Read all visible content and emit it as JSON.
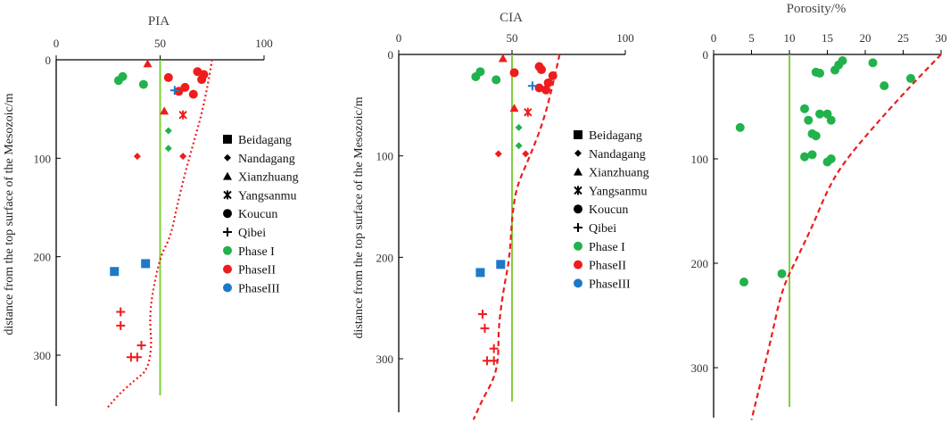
{
  "legend": [
    {
      "label": "Beidagang",
      "marker": "square",
      "color": "#000000"
    },
    {
      "label": "Nandagang",
      "marker": "diamond",
      "color": "#000000"
    },
    {
      "label": "Xianzhuang",
      "marker": "triangle",
      "color": "#000000"
    },
    {
      "label": "Yangsanmu",
      "marker": "star",
      "color": "#000000"
    },
    {
      "label": "Koucun",
      "marker": "circle",
      "color": "#000000"
    },
    {
      "label": "Qibei",
      "marker": "plus",
      "color": "#000000"
    },
    {
      "label": "Phase I",
      "marker": "circle",
      "color": "#22b24c"
    },
    {
      "label": "PhaseII",
      "marker": "circle",
      "color": "#ee1c1c"
    },
    {
      "label": "PhaseIII",
      "marker": "circle",
      "color": "#1f78c8"
    }
  ],
  "colors": {
    "phase1": "#22b24c",
    "phase2": "#ee1c1c",
    "phase3": "#1f78c8",
    "refline": "#7fd13b",
    "trend": "#ee1c1c",
    "axis": "#000000"
  },
  "chart_data": [
    {
      "type": "scatter",
      "title": "PIA",
      "ylabel": "distance from the top surface of the Mesozoic/m",
      "xlim": [
        0,
        100
      ],
      "ylim": [
        0,
        350
      ],
      "xticks": [
        0,
        50,
        100
      ],
      "yticks": [
        0,
        100,
        200,
        300
      ],
      "refline_x": 50,
      "points": [
        {
          "x": 30,
          "y": 21,
          "marker": "circle",
          "phase": "phase1"
        },
        {
          "x": 32,
          "y": 17,
          "marker": "circle",
          "phase": "phase1"
        },
        {
          "x": 42,
          "y": 25,
          "marker": "circle",
          "phase": "phase1"
        },
        {
          "x": 54,
          "y": 72,
          "marker": "diamond",
          "phase": "phase1"
        },
        {
          "x": 54,
          "y": 90,
          "marker": "diamond",
          "phase": "phase1"
        },
        {
          "x": 44,
          "y": 4,
          "marker": "triangle",
          "phase": "phase2"
        },
        {
          "x": 52,
          "y": 52,
          "marker": "triangle",
          "phase": "phase2"
        },
        {
          "x": 54,
          "y": 18,
          "marker": "circle",
          "phase": "phase2"
        },
        {
          "x": 59,
          "y": 32,
          "marker": "circle",
          "phase": "phase2"
        },
        {
          "x": 62,
          "y": 28,
          "marker": "circle",
          "phase": "phase2"
        },
        {
          "x": 66,
          "y": 35,
          "marker": "circle",
          "phase": "phase2"
        },
        {
          "x": 68,
          "y": 12,
          "marker": "circle",
          "phase": "phase2"
        },
        {
          "x": 70,
          "y": 20,
          "marker": "circle",
          "phase": "phase2"
        },
        {
          "x": 71,
          "y": 15,
          "marker": "circle",
          "phase": "phase2"
        },
        {
          "x": 61,
          "y": 56,
          "marker": "star",
          "phase": "phase2"
        },
        {
          "x": 39,
          "y": 98,
          "marker": "diamond",
          "phase": "phase2"
        },
        {
          "x": 61,
          "y": 98,
          "marker": "diamond",
          "phase": "phase2"
        },
        {
          "x": 57,
          "y": 31,
          "marker": "plus",
          "phase": "phase3"
        },
        {
          "x": 43,
          "y": 207,
          "marker": "square",
          "phase": "phase3"
        },
        {
          "x": 28,
          "y": 215,
          "marker": "square",
          "phase": "phase3"
        },
        {
          "x": 31,
          "y": 256,
          "marker": "plus",
          "phase": "phase2"
        },
        {
          "x": 31,
          "y": 270,
          "marker": "plus",
          "phase": "phase2"
        },
        {
          "x": 41,
          "y": 290,
          "marker": "plus",
          "phase": "phase2"
        },
        {
          "x": 36,
          "y": 302,
          "marker": "plus",
          "phase": "phase2"
        },
        {
          "x": 39,
          "y": 302,
          "marker": "plus",
          "phase": "phase2"
        }
      ],
      "trend": [
        {
          "x": 75,
          "y": 0
        },
        {
          "x": 73,
          "y": 25
        },
        {
          "x": 70,
          "y": 55
        },
        {
          "x": 66,
          "y": 85
        },
        {
          "x": 62,
          "y": 115
        },
        {
          "x": 58,
          "y": 150
        },
        {
          "x": 55,
          "y": 180
        },
        {
          "x": 50,
          "y": 200
        },
        {
          "x": 46,
          "y": 240
        },
        {
          "x": 45,
          "y": 265
        },
        {
          "x": 46,
          "y": 290
        },
        {
          "x": 44,
          "y": 315
        },
        {
          "x": 38,
          "y": 325
        },
        {
          "x": 30,
          "y": 340
        },
        {
          "x": 24,
          "y": 355
        }
      ]
    },
    {
      "type": "scatter",
      "title": "CIA",
      "ylabel": "distance from the top surface of the Mesozoic/m",
      "xlim": [
        0,
        100
      ],
      "ylim": [
        0,
        350
      ],
      "xticks": [
        0,
        50,
        100
      ],
      "yticks": [
        0,
        100,
        200,
        300
      ],
      "refline_x": 50,
      "points": [
        {
          "x": 34,
          "y": 22,
          "marker": "circle",
          "phase": "phase1"
        },
        {
          "x": 36,
          "y": 17,
          "marker": "circle",
          "phase": "phase1"
        },
        {
          "x": 43,
          "y": 25,
          "marker": "circle",
          "phase": "phase1"
        },
        {
          "x": 53,
          "y": 72,
          "marker": "diamond",
          "phase": "phase1"
        },
        {
          "x": 53,
          "y": 90,
          "marker": "diamond",
          "phase": "phase1"
        },
        {
          "x": 46,
          "y": 4,
          "marker": "triangle",
          "phase": "phase2"
        },
        {
          "x": 51,
          "y": 53,
          "marker": "triangle",
          "phase": "phase2"
        },
        {
          "x": 51,
          "y": 18,
          "marker": "circle",
          "phase": "phase2"
        },
        {
          "x": 62,
          "y": 33,
          "marker": "circle",
          "phase": "phase2"
        },
        {
          "x": 65,
          "y": 35,
          "marker": "circle",
          "phase": "phase2"
        },
        {
          "x": 66,
          "y": 28,
          "marker": "circle",
          "phase": "phase2"
        },
        {
          "x": 68,
          "y": 21,
          "marker": "circle",
          "phase": "phase2"
        },
        {
          "x": 62,
          "y": 12,
          "marker": "circle",
          "phase": "phase2"
        },
        {
          "x": 63,
          "y": 15,
          "marker": "circle",
          "phase": "phase2"
        },
        {
          "x": 57,
          "y": 57,
          "marker": "star",
          "phase": "phase2"
        },
        {
          "x": 44,
          "y": 98,
          "marker": "diamond",
          "phase": "phase2"
        },
        {
          "x": 56,
          "y": 98,
          "marker": "diamond",
          "phase": "phase2"
        },
        {
          "x": 59,
          "y": 31,
          "marker": "plus",
          "phase": "phase3"
        },
        {
          "x": 45,
          "y": 207,
          "marker": "square",
          "phase": "phase3"
        },
        {
          "x": 36,
          "y": 215,
          "marker": "square",
          "phase": "phase3"
        },
        {
          "x": 37,
          "y": 256,
          "marker": "plus",
          "phase": "phase2"
        },
        {
          "x": 38,
          "y": 270,
          "marker": "plus",
          "phase": "phase2"
        },
        {
          "x": 42,
          "y": 290,
          "marker": "plus",
          "phase": "phase2"
        },
        {
          "x": 39,
          "y": 302,
          "marker": "plus",
          "phase": "phase2"
        },
        {
          "x": 42,
          "y": 302,
          "marker": "plus",
          "phase": "phase2"
        }
      ],
      "trend": [
        {
          "x": 71,
          "y": 0
        },
        {
          "x": 68,
          "y": 30
        },
        {
          "x": 64,
          "y": 65
        },
        {
          "x": 58,
          "y": 100
        },
        {
          "x": 52,
          "y": 130
        },
        {
          "x": 50,
          "y": 160
        },
        {
          "x": 49,
          "y": 200
        },
        {
          "x": 46,
          "y": 235
        },
        {
          "x": 44,
          "y": 270
        },
        {
          "x": 44,
          "y": 300
        },
        {
          "x": 42,
          "y": 320
        },
        {
          "x": 37,
          "y": 340
        },
        {
          "x": 33,
          "y": 360
        }
      ]
    },
    {
      "type": "scatter",
      "title": "Porosity/%",
      "ylabel": "",
      "xlim": [
        0,
        30
      ],
      "ylim": [
        0,
        350
      ],
      "xticks": [
        0,
        5,
        10,
        15,
        20,
        25,
        30
      ],
      "yticks": [
        0,
        100,
        200,
        300
      ],
      "refline_x": 10,
      "points": [
        {
          "x": 13.5,
          "y": 17,
          "marker": "circle",
          "phase": "phase1"
        },
        {
          "x": 14,
          "y": 18,
          "marker": "circle",
          "phase": "phase1"
        },
        {
          "x": 16,
          "y": 15,
          "marker": "circle",
          "phase": "phase1"
        },
        {
          "x": 16.5,
          "y": 10,
          "marker": "circle",
          "phase": "phase1"
        },
        {
          "x": 17,
          "y": 6,
          "marker": "circle",
          "phase": "phase1"
        },
        {
          "x": 21,
          "y": 8,
          "marker": "circle",
          "phase": "phase1"
        },
        {
          "x": 22.5,
          "y": 30,
          "marker": "circle",
          "phase": "phase1"
        },
        {
          "x": 26,
          "y": 23,
          "marker": "circle",
          "phase": "phase1"
        },
        {
          "x": 12,
          "y": 52,
          "marker": "circle",
          "phase": "phase1"
        },
        {
          "x": 14,
          "y": 57,
          "marker": "circle",
          "phase": "phase1"
        },
        {
          "x": 12.5,
          "y": 63,
          "marker": "circle",
          "phase": "phase1"
        },
        {
          "x": 15,
          "y": 57,
          "marker": "circle",
          "phase": "phase1"
        },
        {
          "x": 15.5,
          "y": 63,
          "marker": "circle",
          "phase": "phase1"
        },
        {
          "x": 13,
          "y": 76,
          "marker": "circle",
          "phase": "phase1"
        },
        {
          "x": 13.5,
          "y": 78,
          "marker": "circle",
          "phase": "phase1"
        },
        {
          "x": 12,
          "y": 98,
          "marker": "circle",
          "phase": "phase1"
        },
        {
          "x": 13,
          "y": 96,
          "marker": "circle",
          "phase": "phase1"
        },
        {
          "x": 15,
          "y": 103,
          "marker": "circle",
          "phase": "phase1"
        },
        {
          "x": 15.5,
          "y": 100,
          "marker": "circle",
          "phase": "phase1"
        },
        {
          "x": 3.5,
          "y": 70,
          "marker": "circle",
          "phase": "phase1"
        },
        {
          "x": 9,
          "y": 210,
          "marker": "circle",
          "phase": "phase1"
        },
        {
          "x": 4,
          "y": 218,
          "marker": "circle",
          "phase": "phase1"
        }
      ],
      "trend": [
        {
          "x": 30,
          "y": 0
        },
        {
          "x": 26,
          "y": 30
        },
        {
          "x": 21,
          "y": 70
        },
        {
          "x": 17,
          "y": 105
        },
        {
          "x": 15,
          "y": 130
        },
        {
          "x": 13,
          "y": 165
        },
        {
          "x": 11,
          "y": 195
        },
        {
          "x": 9,
          "y": 225
        },
        {
          "x": 7.5,
          "y": 275
        },
        {
          "x": 6,
          "y": 320
        },
        {
          "x": 5,
          "y": 350
        }
      ]
    }
  ]
}
